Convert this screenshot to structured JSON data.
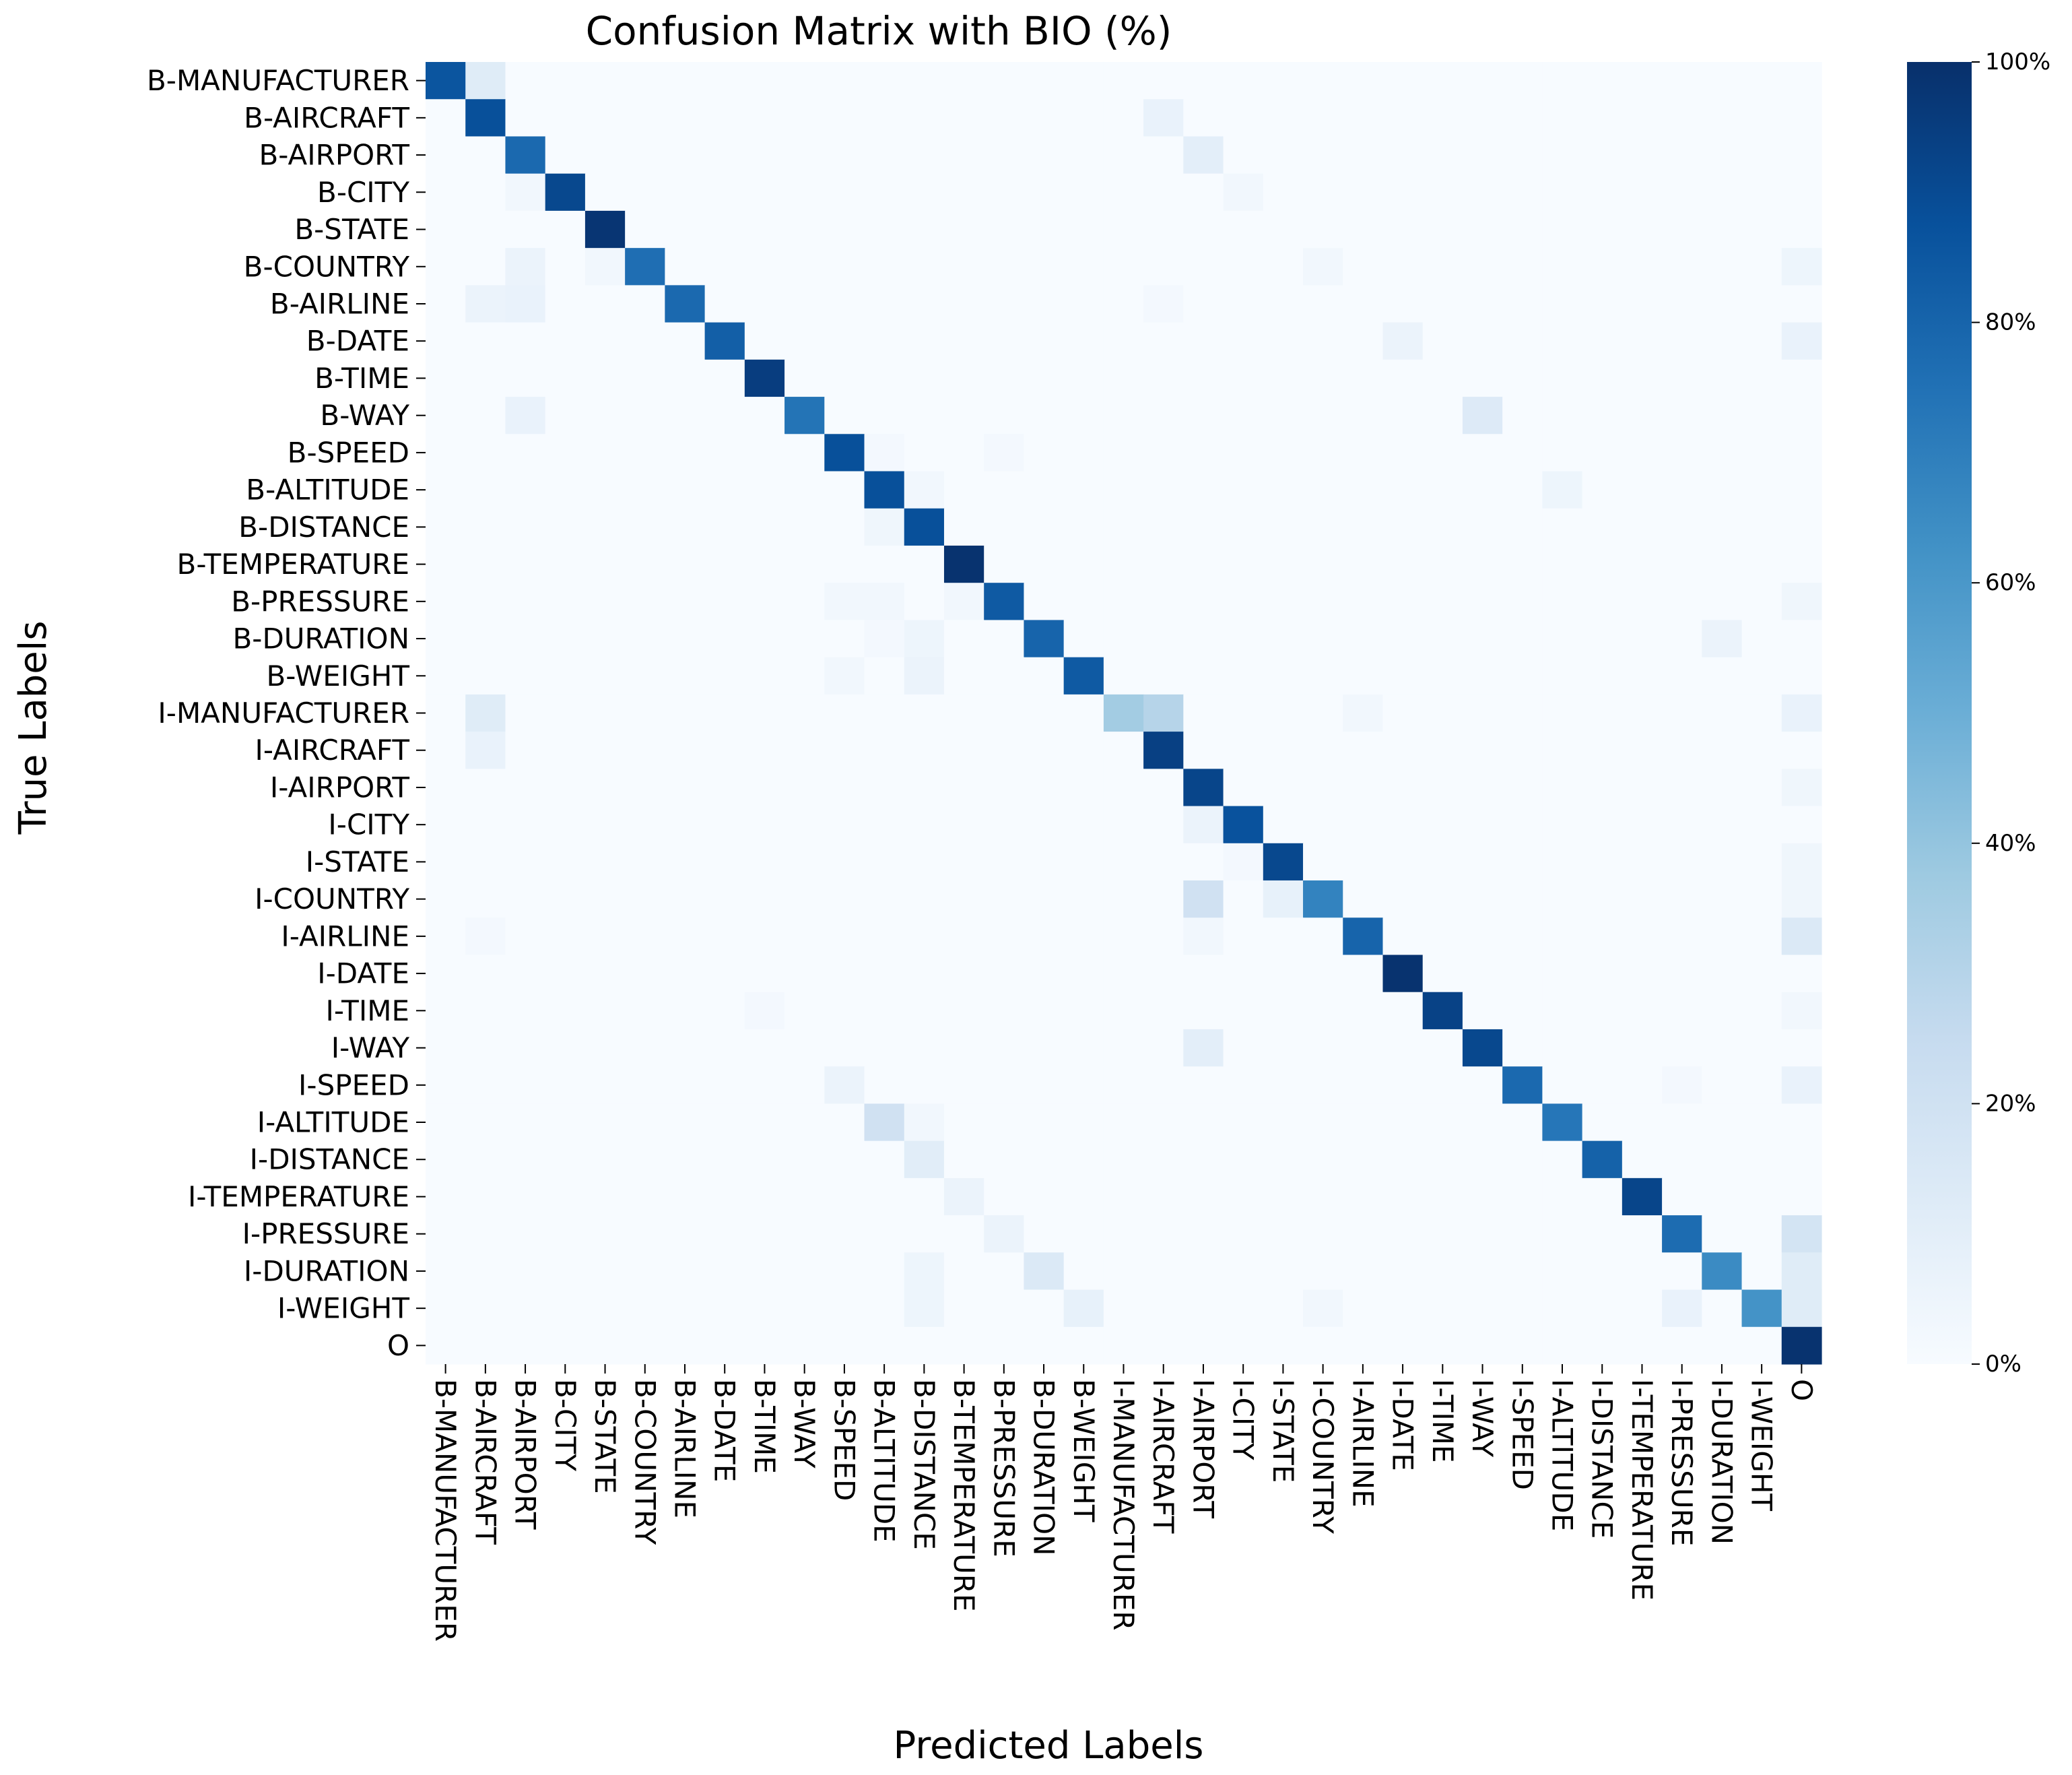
{
  "chart_data": {
    "type": "heatmap",
    "title": "Confusion Matrix with BIO (%)",
    "xlabel": "Predicted Labels",
    "ylabel": "True Labels",
    "labels": [
      "B-MANUFACTURER",
      "B-AIRCRAFT",
      "B-AIRPORT",
      "B-CITY",
      "B-STATE",
      "B-COUNTRY",
      "B-AIRLINE",
      "B-DATE",
      "B-TIME",
      "B-WAY",
      "B-SPEED",
      "B-ALTITUDE",
      "B-DISTANCE",
      "B-TEMPERATURE",
      "B-PRESSURE",
      "B-DURATION",
      "B-WEIGHT",
      "I-MANUFACTURER",
      "I-AIRCRAFT",
      "I-AIRPORT",
      "I-CITY",
      "I-STATE",
      "I-COUNTRY",
      "I-AIRLINE",
      "I-DATE",
      "I-TIME",
      "I-WAY",
      "I-SPEED",
      "I-ALTITUDE",
      "I-DISTANCE",
      "I-TEMPERATURE",
      "I-PRESSURE",
      "I-DURATION",
      "I-WEIGHT",
      "O"
    ],
    "value_range": [
      0,
      100
    ],
    "colormap": [
      "#f7fbff",
      "#deebf7",
      "#c6dbef",
      "#9ecae1",
      "#6baed6",
      "#4292c6",
      "#2171b5",
      "#08519c",
      "#08306b"
    ],
    "colorbar_ticks": [
      0,
      20,
      40,
      60,
      80,
      100
    ],
    "colorbar_tick_labels": [
      "0%",
      "20%",
      "40%",
      "60%",
      "80%",
      "100%"
    ],
    "diagonal": [
      86,
      88,
      78,
      91,
      98,
      76,
      78,
      82,
      95,
      74,
      88,
      88,
      88,
      99,
      84,
      80,
      84,
      36,
      94,
      92,
      87,
      91,
      68,
      80,
      99,
      93,
      91,
      78,
      73,
      81,
      92,
      77,
      65,
      62,
      99
    ],
    "off_diagonal": [
      [
        0,
        1,
        12
      ],
      [
        1,
        18,
        7
      ],
      [
        2,
        19,
        10
      ],
      [
        3,
        2,
        3
      ],
      [
        3,
        20,
        3
      ],
      [
        5,
        2,
        6
      ],
      [
        5,
        4,
        3
      ],
      [
        5,
        22,
        3
      ],
      [
        5,
        34,
        5
      ],
      [
        6,
        1,
        6
      ],
      [
        6,
        2,
        7
      ],
      [
        6,
        18,
        2
      ],
      [
        7,
        24,
        6
      ],
      [
        7,
        34,
        7
      ],
      [
        9,
        2,
        7
      ],
      [
        9,
        26,
        13
      ],
      [
        10,
        11,
        2
      ],
      [
        10,
        14,
        2
      ],
      [
        11,
        12,
        3
      ],
      [
        11,
        28,
        5
      ],
      [
        12,
        11,
        4
      ],
      [
        14,
        10,
        3
      ],
      [
        14,
        11,
        3
      ],
      [
        14,
        13,
        3
      ],
      [
        14,
        34,
        4
      ],
      [
        15,
        11,
        2
      ],
      [
        15,
        12,
        5
      ],
      [
        15,
        32,
        6
      ],
      [
        16,
        10,
        3
      ],
      [
        16,
        12,
        6
      ],
      [
        17,
        1,
        12
      ],
      [
        17,
        18,
        30
      ],
      [
        17,
        23,
        3
      ],
      [
        17,
        34,
        7
      ],
      [
        18,
        1,
        7
      ],
      [
        19,
        34,
        4
      ],
      [
        20,
        19,
        6
      ],
      [
        21,
        20,
        2
      ],
      [
        21,
        34,
        4
      ],
      [
        22,
        19,
        20
      ],
      [
        22,
        21,
        8
      ],
      [
        22,
        34,
        4
      ],
      [
        23,
        1,
        2
      ],
      [
        23,
        19,
        3
      ],
      [
        23,
        34,
        14
      ],
      [
        25,
        8,
        2
      ],
      [
        25,
        34,
        3
      ],
      [
        26,
        19,
        10
      ],
      [
        27,
        10,
        6
      ],
      [
        27,
        31,
        2
      ],
      [
        27,
        34,
        7
      ],
      [
        28,
        11,
        20
      ],
      [
        28,
        12,
        3
      ],
      [
        29,
        12,
        11
      ],
      [
        30,
        13,
        6
      ],
      [
        31,
        14,
        6
      ],
      [
        31,
        34,
        18
      ],
      [
        32,
        12,
        5
      ],
      [
        32,
        15,
        14
      ],
      [
        32,
        34,
        12
      ],
      [
        33,
        12,
        5
      ],
      [
        33,
        16,
        8
      ],
      [
        33,
        22,
        3
      ],
      [
        33,
        31,
        7
      ],
      [
        33,
        34,
        12
      ]
    ]
  }
}
